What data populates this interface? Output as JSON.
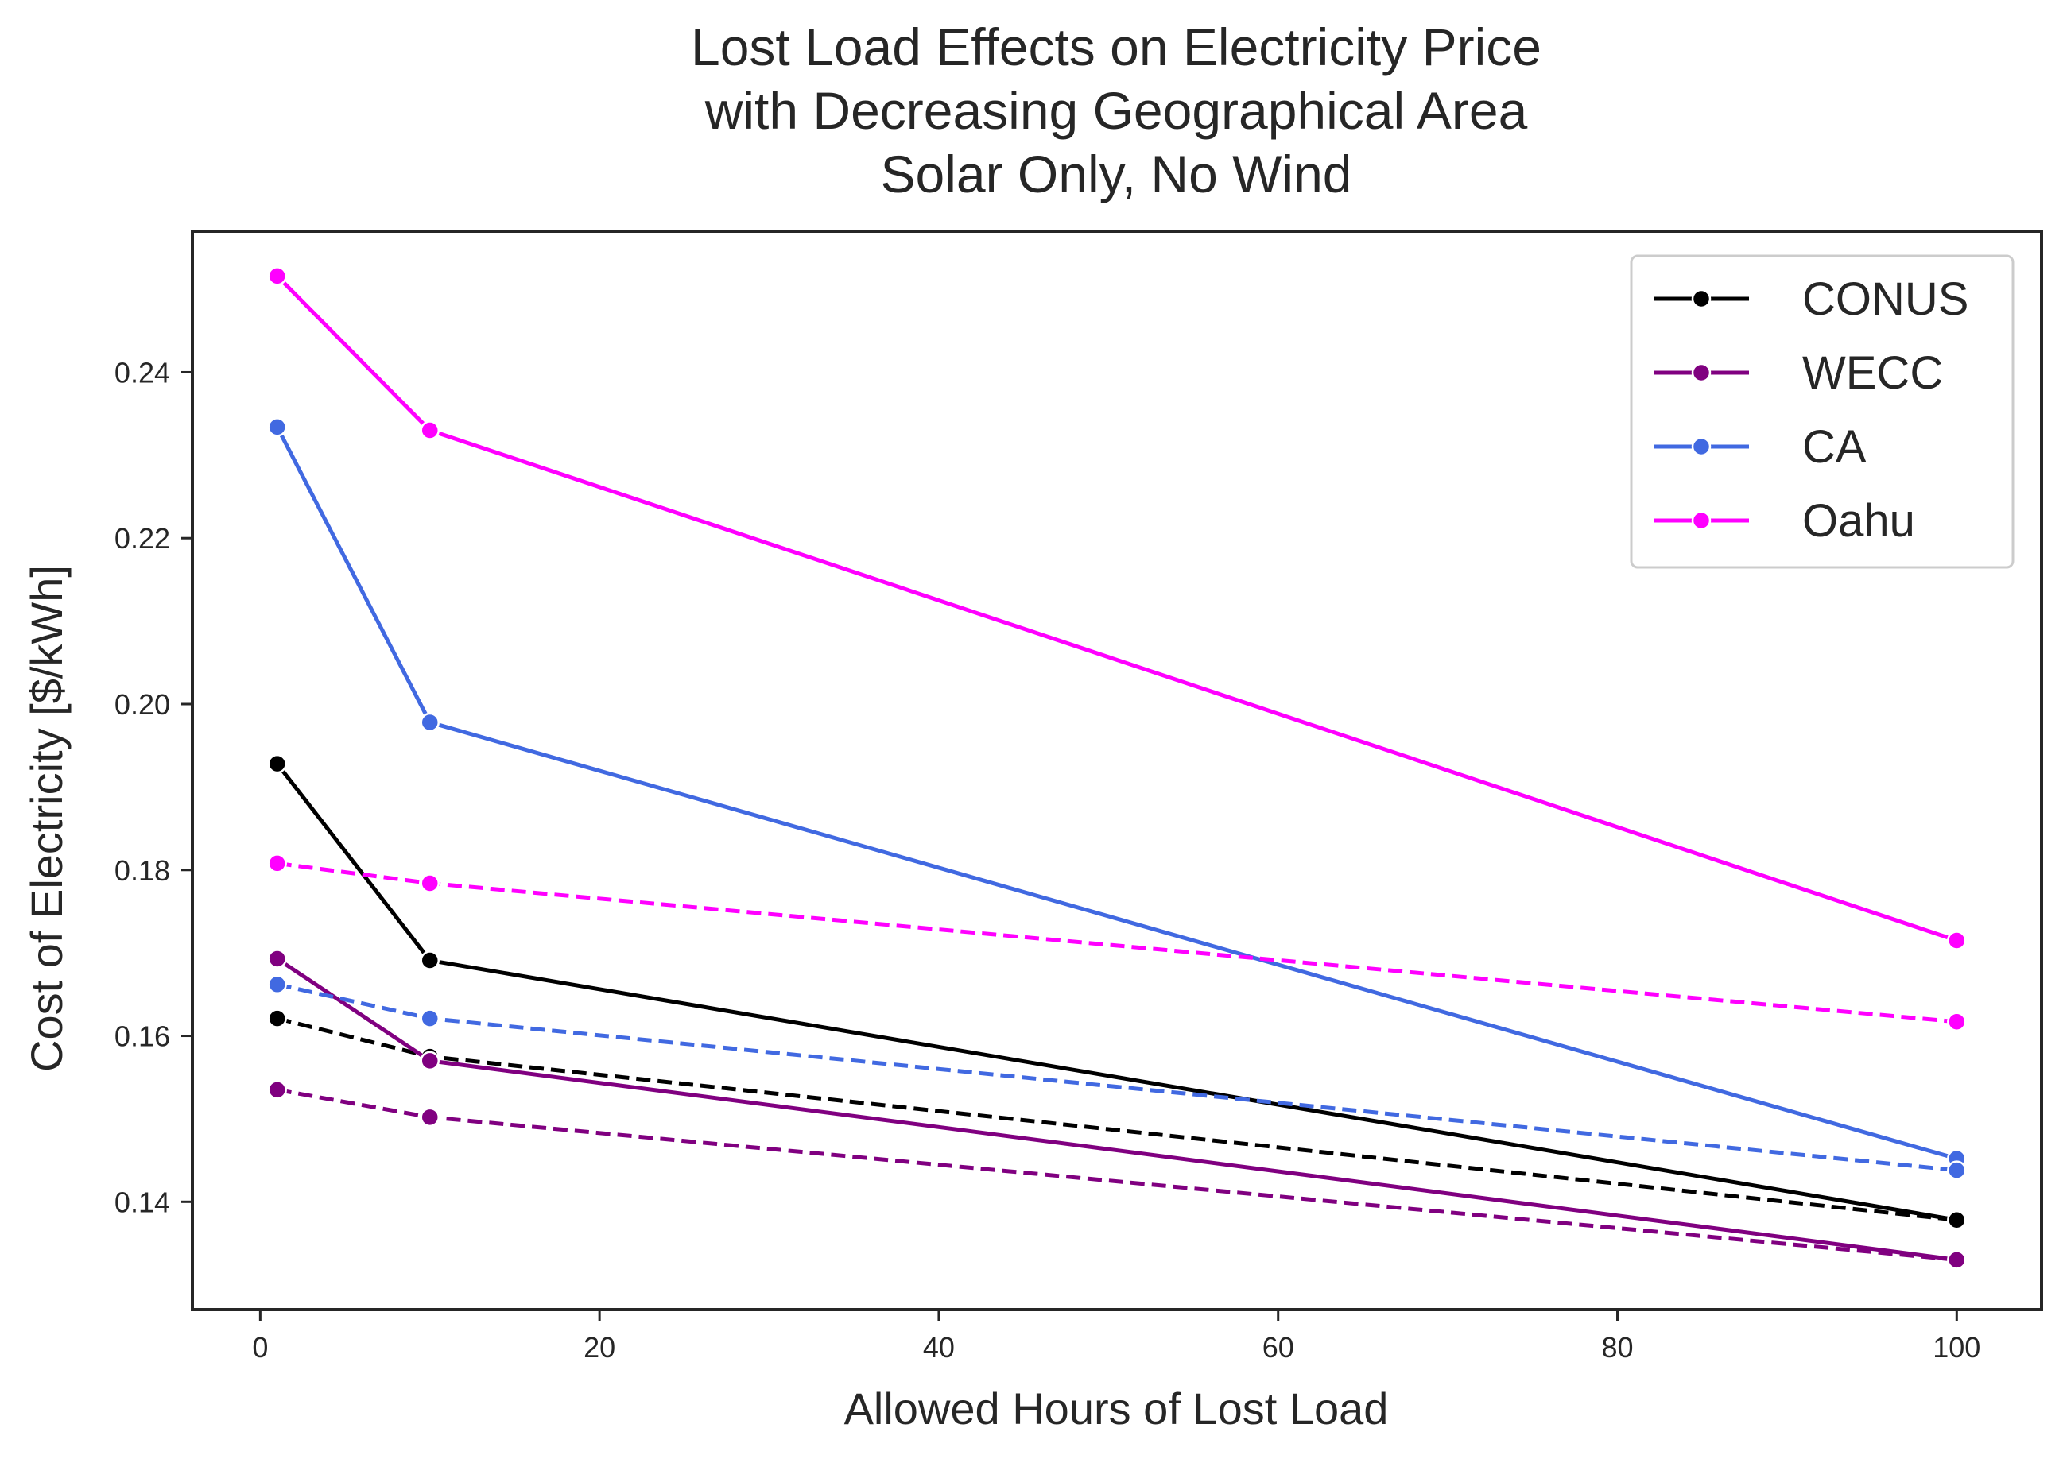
{
  "chart_data": {
    "type": "line",
    "title": [
      "Lost Load Effects on Electricity Price",
      "with Decreasing Geographical Area",
      "Solar Only, No Wind"
    ],
    "xlabel": "Allowed Hours of Lost Load",
    "ylabel": "Cost of Electricity [$/kWh]",
    "xlim": [
      -4,
      105
    ],
    "ylim": [
      0.127,
      0.257
    ],
    "xticks": [
      0,
      20,
      40,
      60,
      80,
      100
    ],
    "yticks": [
      0.14,
      0.16,
      0.18,
      0.2,
      0.22,
      0.24
    ],
    "xtick_labels": [
      "0",
      "20",
      "40",
      "60",
      "80",
      "100"
    ],
    "ytick_labels": [
      "0.14",
      "0.16",
      "0.18",
      "0.20",
      "0.22",
      "0.24"
    ],
    "grid": false,
    "legend_position": "top-right",
    "legend": [
      "CONUS",
      "WECC",
      "CA",
      "Oahu"
    ],
    "x": [
      1,
      10,
      100
    ],
    "series": [
      {
        "name": "CONUS",
        "style": "solid",
        "color": "#000000",
        "values": [
          0.1928,
          0.1691,
          0.1378
        ]
      },
      {
        "name": "CONUS",
        "style": "dashed",
        "color": "#000000",
        "values": [
          0.1621,
          0.1575,
          0.1378
        ]
      },
      {
        "name": "WECC",
        "style": "solid",
        "color": "#800080",
        "values": [
          0.1693,
          0.157,
          0.133
        ]
      },
      {
        "name": "WECC",
        "style": "dashed",
        "color": "#800080",
        "values": [
          0.1535,
          0.1502,
          0.133
        ]
      },
      {
        "name": "CA",
        "style": "solid",
        "color": "#4169E1",
        "values": [
          0.2334,
          0.1978,
          0.1452
        ]
      },
      {
        "name": "CA",
        "style": "dashed",
        "color": "#4169E1",
        "values": [
          0.1662,
          0.1621,
          0.1438
        ]
      },
      {
        "name": "Oahu",
        "style": "solid",
        "color": "#FF00FF",
        "values": [
          0.2516,
          0.233,
          0.1715
        ]
      },
      {
        "name": "Oahu",
        "style": "dashed",
        "color": "#FF00FF",
        "values": [
          0.1808,
          0.1784,
          0.1617
        ]
      }
    ],
    "legend_colors": [
      "#000000",
      "#800080",
      "#4169E1",
      "#FF00FF"
    ]
  }
}
